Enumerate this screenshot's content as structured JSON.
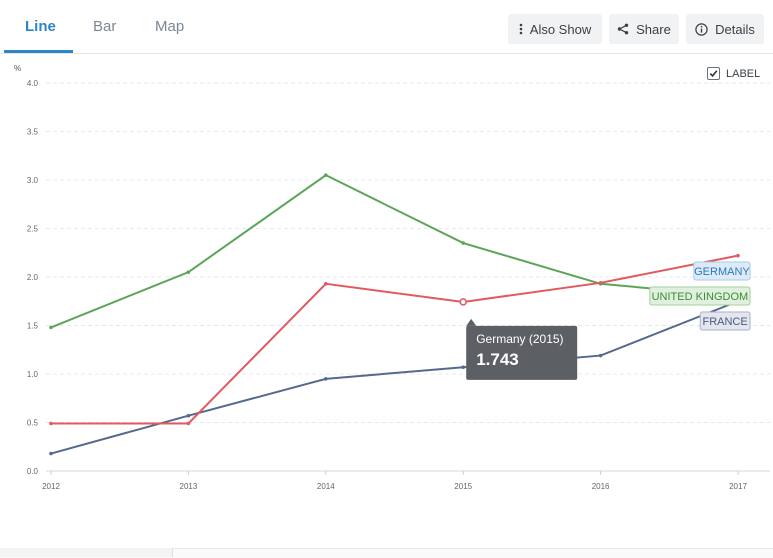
{
  "tabs": [
    {
      "label": "Line",
      "active": true
    },
    {
      "label": "Bar",
      "active": false
    },
    {
      "label": "Map",
      "active": false
    }
  ],
  "toolbar": {
    "also_show": {
      "label": "Also Show",
      "icon": "vertical-dots-icon"
    },
    "share": {
      "label": "Share",
      "icon": "share-icon"
    },
    "details": {
      "label": "Details",
      "icon": "info-icon"
    }
  },
  "label_toggle": {
    "label": "LABEL",
    "checked": true
  },
  "colors": {
    "accent": "#2a86c8",
    "germany": "#e05a5f",
    "united_kingdom": "#5aa557",
    "france": "#55698f"
  },
  "tooltip": {
    "title": "Germany (2015)",
    "value": "1.743"
  },
  "chart_data": {
    "type": "line",
    "ylabel": "%",
    "xlabel": "",
    "ylim": [
      0,
      4.0
    ],
    "yticks": [
      "0.0",
      "0.5",
      "1.0",
      "1.5",
      "2.0",
      "2.5",
      "3.0",
      "3.5",
      "4.0"
    ],
    "x": [
      "2012",
      "2013",
      "2014",
      "2015",
      "2016",
      "2017"
    ],
    "grid": true,
    "series": [
      {
        "name": "GERMANY",
        "color": "#e05a5f",
        "values": [
          0.49,
          0.49,
          1.93,
          1.743,
          1.94,
          2.22
        ]
      },
      {
        "name": "UNITED KINGDOM",
        "color": "#5aa557",
        "values": [
          1.48,
          2.05,
          3.05,
          2.35,
          1.93,
          1.8
        ]
      },
      {
        "name": "FRANCE",
        "color": "#55698f",
        "values": [
          0.18,
          0.57,
          0.95,
          1.07,
          1.19,
          1.75
        ]
      }
    ],
    "highlight": {
      "series": "GERMANY",
      "x": "2015"
    }
  }
}
